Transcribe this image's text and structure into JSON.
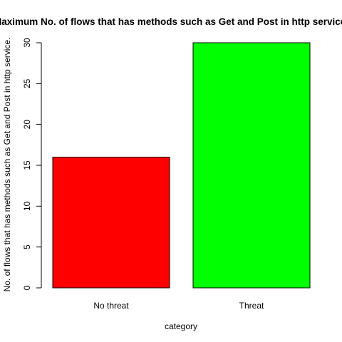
{
  "chart_data": {
    "type": "bar",
    "title": "Maximum No. of flows that has methods such as Get and Post in http service.",
    "xlabel": "category",
    "ylabel": "No. of flows that has methods such as Get and Post in http service.",
    "categories": [
      "No threat",
      "Threat"
    ],
    "values": [
      16,
      30
    ],
    "colors": [
      "#ff0000",
      "#00ff00"
    ],
    "ylim": [
      0,
      30
    ],
    "yticks": [
      0,
      5,
      10,
      15,
      20,
      25,
      30
    ],
    "grid": false,
    "legend": "none"
  }
}
